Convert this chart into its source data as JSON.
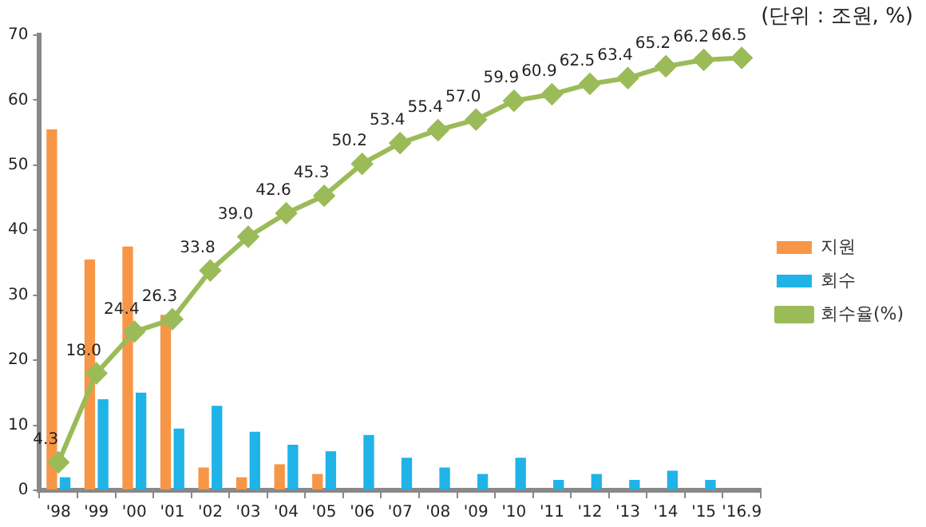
{
  "chart_data": {
    "type": "bar",
    "categories": [
      "'98",
      "'99",
      "'00",
      "'01",
      "'02",
      "'03",
      "'04",
      "'05",
      "'06",
      "'07",
      "'08",
      "'09",
      "'10",
      "'11",
      "'12",
      "'13",
      "'14",
      "'15",
      "'16.9"
    ],
    "series": [
      {
        "name": "지원",
        "color": "#f79646",
        "values": [
          55.5,
          35.5,
          37.5,
          27,
          3.5,
          2,
          4,
          2.5,
          null,
          null,
          null,
          null,
          null,
          null,
          null,
          null,
          null,
          null,
          null
        ]
      },
      {
        "name": "회수",
        "color": "#1fb3e8",
        "values": [
          2,
          14,
          15,
          9.5,
          13,
          9,
          7,
          6,
          8.5,
          5,
          3.5,
          2.5,
          5,
          1.6,
          2.5,
          1.6,
          3,
          1.6,
          null
        ]
      },
      {
        "name": "회수율(%)",
        "type": "line",
        "color": "#9bbb59",
        "marker": "diamond",
        "values": [
          4.3,
          18.0,
          24.4,
          26.3,
          33.8,
          39.0,
          42.6,
          45.3,
          50.2,
          53.4,
          55.4,
          57.0,
          59.9,
          60.9,
          62.5,
          63.4,
          65.2,
          66.2,
          66.5
        ],
        "value_labels": [
          "4.3",
          "18.0",
          "24.4",
          "26.3",
          "33.8",
          "39.0",
          "42.6",
          "45.3",
          "50.2",
          "53.4",
          "55.4",
          "57.0",
          "59.9",
          "60.9",
          "62.5",
          "63.4",
          "65.2",
          "66.2",
          "66.5"
        ]
      }
    ],
    "ylim": [
      0,
      70
    ],
    "yticks": [
      0,
      10,
      20,
      30,
      40,
      50,
      60,
      70
    ],
    "grid": false,
    "legend": "right",
    "annotations": [
      "(단위 : 조원, %)"
    ]
  }
}
